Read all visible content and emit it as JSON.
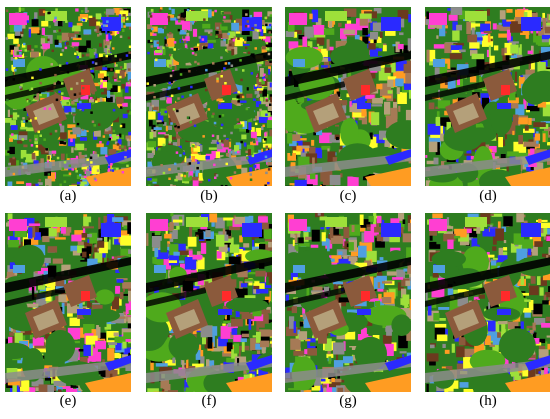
{
  "palette": {
    "tree": "#2e7d20",
    "grass": "#4faa1c",
    "lightgrass": "#9ee03a",
    "soil": "#a67a56",
    "building": "#8b5a3c",
    "shadow": "#000000",
    "magenta": "#ff3fd2",
    "blue": "#2a2aff",
    "skyblue": "#4f9fe0",
    "yellow": "#ffff2a",
    "orange": "#ff9c22",
    "gray": "#8c8c8c",
    "red": "#ff2a2a",
    "tan": "#b4a07a",
    "brown2": "#6b3a1e"
  },
  "panels": [
    {
      "caption": "(a)"
    },
    {
      "caption": "(b)"
    },
    {
      "caption": "(c)"
    },
    {
      "caption": "(d)"
    },
    {
      "caption": "(e)"
    },
    {
      "caption": "(f)"
    },
    {
      "caption": "(g)"
    },
    {
      "caption": "(h)"
    }
  ]
}
